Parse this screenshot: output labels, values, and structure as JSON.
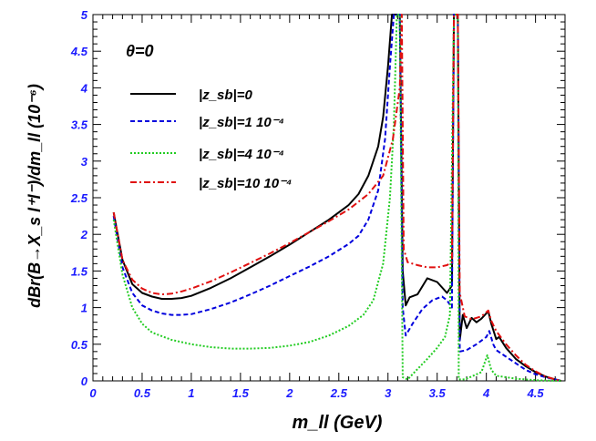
{
  "chart_data": {
    "type": "line",
    "xlabel": "m_ll (GeV)",
    "ylabel": "dBr(B→X_s l⁺l⁻)/dm_ll (10⁻⁶)",
    "annotation": "θ=0",
    "xlim": [
      0,
      4.8
    ],
    "ylim": [
      0,
      5
    ],
    "x_ticks": [
      "0",
      "0.5",
      "1",
      "1.5",
      "2",
      "2.5",
      "3",
      "3.5",
      "4",
      "4.5"
    ],
    "y_ticks": [
      "0",
      "0.5",
      "1",
      "1.5",
      "2",
      "2.5",
      "3",
      "3.5",
      "4",
      "4.5",
      "5"
    ],
    "grid": false,
    "legend_position": "top-left",
    "series": [
      {
        "name": "|z_sb|=0",
        "color": "#000000",
        "dash": "solid",
        "points": [
          [
            0.21,
            2.3
          ],
          [
            0.3,
            1.65
          ],
          [
            0.4,
            1.32
          ],
          [
            0.5,
            1.2
          ],
          [
            0.6,
            1.15
          ],
          [
            0.7,
            1.12
          ],
          [
            0.8,
            1.12
          ],
          [
            0.9,
            1.13
          ],
          [
            1.0,
            1.16
          ],
          [
            1.2,
            1.27
          ],
          [
            1.4,
            1.4
          ],
          [
            1.6,
            1.55
          ],
          [
            1.8,
            1.7
          ],
          [
            2.0,
            1.86
          ],
          [
            2.2,
            2.03
          ],
          [
            2.4,
            2.2
          ],
          [
            2.6,
            2.4
          ],
          [
            2.7,
            2.55
          ],
          [
            2.8,
            2.8
          ],
          [
            2.9,
            3.2
          ],
          [
            2.95,
            3.6
          ],
          [
            3.0,
            4.3
          ],
          [
            3.04,
            5.0
          ],
          [
            3.12,
            5.0
          ],
          [
            3.15,
            1.5
          ],
          [
            3.18,
            1.03
          ],
          [
            3.22,
            1.14
          ],
          [
            3.3,
            1.18
          ],
          [
            3.4,
            1.4
          ],
          [
            3.5,
            1.35
          ],
          [
            3.6,
            1.2
          ],
          [
            3.65,
            1.3
          ],
          [
            3.67,
            5.0
          ],
          [
            3.71,
            5.0
          ],
          [
            3.73,
            0.55
          ],
          [
            3.76,
            0.9
          ],
          [
            3.8,
            0.72
          ],
          [
            3.85,
            0.86
          ],
          [
            3.9,
            0.8
          ],
          [
            3.95,
            0.85
          ],
          [
            4.02,
            0.95
          ],
          [
            4.05,
            0.78
          ],
          [
            4.1,
            0.57
          ],
          [
            4.13,
            0.6
          ],
          [
            4.2,
            0.45
          ],
          [
            4.3,
            0.3
          ],
          [
            4.4,
            0.2
          ],
          [
            4.5,
            0.12
          ],
          [
            4.6,
            0.06
          ],
          [
            4.7,
            0.02
          ],
          [
            4.76,
            0.0
          ]
        ]
      },
      {
        "name": "|z_sb|=1  10⁻⁴",
        "color": "#0000dd",
        "dash": "dash",
        "points": [
          [
            0.21,
            2.25
          ],
          [
            0.3,
            1.55
          ],
          [
            0.4,
            1.2
          ],
          [
            0.5,
            1.03
          ],
          [
            0.6,
            0.96
          ],
          [
            0.7,
            0.92
          ],
          [
            0.8,
            0.9
          ],
          [
            0.9,
            0.9
          ],
          [
            1.0,
            0.91
          ],
          [
            1.2,
            0.98
          ],
          [
            1.4,
            1.07
          ],
          [
            1.6,
            1.18
          ],
          [
            1.8,
            1.3
          ],
          [
            2.0,
            1.43
          ],
          [
            2.2,
            1.56
          ],
          [
            2.4,
            1.7
          ],
          [
            2.6,
            1.87
          ],
          [
            2.7,
            1.98
          ],
          [
            2.8,
            2.2
          ],
          [
            2.9,
            2.6
          ],
          [
            2.97,
            3.3
          ],
          [
            3.02,
            4.3
          ],
          [
            3.06,
            5.0
          ],
          [
            3.12,
            5.0
          ],
          [
            3.15,
            1.0
          ],
          [
            3.18,
            0.62
          ],
          [
            3.25,
            0.78
          ],
          [
            3.35,
            0.98
          ],
          [
            3.45,
            1.1
          ],
          [
            3.55,
            1.15
          ],
          [
            3.6,
            1.1
          ],
          [
            3.65,
            1.0
          ],
          [
            3.67,
            5.0
          ],
          [
            3.71,
            5.0
          ],
          [
            3.73,
            0.4
          ],
          [
            3.8,
            0.42
          ],
          [
            3.9,
            0.5
          ],
          [
            4.0,
            0.6
          ],
          [
            4.03,
            0.68
          ],
          [
            4.07,
            0.5
          ],
          [
            4.1,
            0.42
          ],
          [
            4.2,
            0.33
          ],
          [
            4.3,
            0.24
          ],
          [
            4.4,
            0.15
          ],
          [
            4.5,
            0.09
          ],
          [
            4.6,
            0.05
          ],
          [
            4.7,
            0.02
          ],
          [
            4.76,
            0.0
          ]
        ]
      },
      {
        "name": "|z_sb|=4  10⁻⁴",
        "color": "#22cc22",
        "dash": "dot",
        "points": [
          [
            0.21,
            2.2
          ],
          [
            0.3,
            1.45
          ],
          [
            0.4,
            1.0
          ],
          [
            0.5,
            0.78
          ],
          [
            0.6,
            0.66
          ],
          [
            0.8,
            0.56
          ],
          [
            1.0,
            0.5
          ],
          [
            1.2,
            0.46
          ],
          [
            1.4,
            0.44
          ],
          [
            1.6,
            0.44
          ],
          [
            1.8,
            0.45
          ],
          [
            2.0,
            0.48
          ],
          [
            2.2,
            0.53
          ],
          [
            2.4,
            0.62
          ],
          [
            2.6,
            0.75
          ],
          [
            2.75,
            0.9
          ],
          [
            2.85,
            1.1
          ],
          [
            2.95,
            1.6
          ],
          [
            3.02,
            2.5
          ],
          [
            3.06,
            3.5
          ],
          [
            3.09,
            5.0
          ],
          [
            3.12,
            5.0
          ],
          [
            3.15,
            0.05
          ],
          [
            3.2,
            0.02
          ],
          [
            3.3,
            0.16
          ],
          [
            3.4,
            0.3
          ],
          [
            3.5,
            0.45
          ],
          [
            3.58,
            0.6
          ],
          [
            3.63,
            0.9
          ],
          [
            3.67,
            5.0
          ],
          [
            3.71,
            5.0
          ],
          [
            3.72,
            0.02
          ],
          [
            3.78,
            0.02
          ],
          [
            3.85,
            0.06
          ],
          [
            3.95,
            0.12
          ],
          [
            4.01,
            0.35
          ],
          [
            4.05,
            0.15
          ],
          [
            4.1,
            0.07
          ],
          [
            4.2,
            0.05
          ],
          [
            4.3,
            0.03
          ],
          [
            4.4,
            0.02
          ],
          [
            4.5,
            0.01
          ],
          [
            4.6,
            0.005
          ],
          [
            4.76,
            0.0
          ]
        ]
      },
      {
        "name": "|z_sb|=10 10⁻⁴",
        "color": "#e01010",
        "dash": "dashdot",
        "points": [
          [
            0.21,
            2.3
          ],
          [
            0.3,
            1.65
          ],
          [
            0.4,
            1.38
          ],
          [
            0.5,
            1.26
          ],
          [
            0.6,
            1.2
          ],
          [
            0.7,
            1.18
          ],
          [
            0.8,
            1.19
          ],
          [
            0.9,
            1.22
          ],
          [
            1.0,
            1.26
          ],
          [
            1.2,
            1.36
          ],
          [
            1.4,
            1.48
          ],
          [
            1.6,
            1.61
          ],
          [
            1.8,
            1.74
          ],
          [
            2.0,
            1.88
          ],
          [
            2.2,
            2.03
          ],
          [
            2.4,
            2.18
          ],
          [
            2.6,
            2.34
          ],
          [
            2.8,
            2.55
          ],
          [
            2.95,
            2.8
          ],
          [
            3.05,
            3.3
          ],
          [
            3.12,
            4.0
          ],
          [
            3.14,
            5.0
          ],
          [
            3.16,
            1.8
          ],
          [
            3.2,
            1.62
          ],
          [
            3.3,
            1.58
          ],
          [
            3.4,
            1.55
          ],
          [
            3.5,
            1.55
          ],
          [
            3.6,
            1.58
          ],
          [
            3.65,
            1.62
          ],
          [
            3.67,
            5.0
          ],
          [
            3.71,
            5.0
          ],
          [
            3.73,
            1.2
          ],
          [
            3.78,
            0.88
          ],
          [
            3.85,
            0.84
          ],
          [
            3.95,
            0.88
          ],
          [
            4.02,
            0.96
          ],
          [
            4.05,
            0.82
          ],
          [
            4.1,
            0.68
          ],
          [
            4.2,
            0.5
          ],
          [
            4.3,
            0.35
          ],
          [
            4.4,
            0.22
          ],
          [
            4.5,
            0.13
          ],
          [
            4.6,
            0.06
          ],
          [
            4.7,
            0.02
          ],
          [
            4.76,
            0.0
          ]
        ]
      }
    ]
  }
}
